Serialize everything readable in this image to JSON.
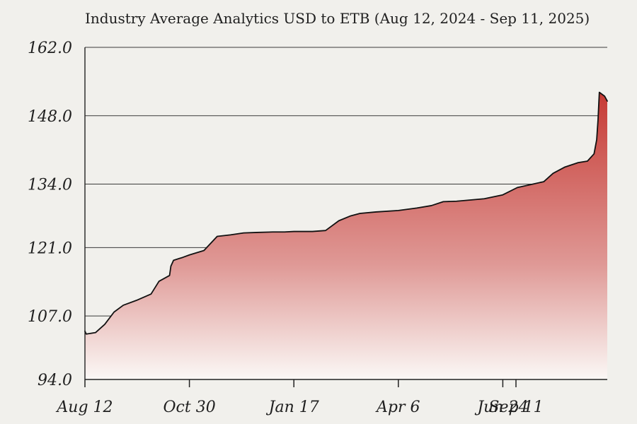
{
  "page": {
    "background": "#f1f0ec"
  },
  "chart_data": {
    "type": "area",
    "title": "Industry Average Analytics  USD to ETB (Aug 12, 2024 - Sep 11, 2025)",
    "xlabel": "",
    "ylabel": "",
    "grid": true,
    "legend": "none",
    "x_tick_labels": [
      "Aug 12",
      "Oct 30",
      "Jan 17",
      "Apr 6",
      "Jun 24",
      "Sep 11"
    ],
    "y_tick_labels": [
      "94.0",
      "107.0",
      "121.0",
      "134.0",
      "148.0",
      "162.0"
    ],
    "ylim": [
      94.0,
      162.0
    ],
    "colors": {
      "fill_top": "#c63a34",
      "fill_bottom": "#fbf8f6",
      "line": "#111111",
      "grid": "#3a3a3a"
    },
    "series": [
      {
        "x": [
          "2024-08-12",
          "2024-08-13",
          "2024-08-20",
          "2024-08-27",
          "2024-09-03",
          "2024-09-10",
          "2024-09-20",
          "2024-10-01",
          "2024-10-07",
          "2024-10-15",
          "2024-10-16",
          "2024-10-18",
          "2024-10-25",
          "2024-10-30",
          "2024-11-10",
          "2024-11-20",
          "2024-11-30",
          "2024-12-10",
          "2024-12-20",
          "2025-01-01",
          "2025-01-10",
          "2025-01-17",
          "2025-01-31",
          "2025-02-10",
          "2025-02-20",
          "2025-03-01",
          "2025-03-08",
          "2025-03-20",
          "2025-04-06",
          "2025-04-20",
          "2025-05-01",
          "2025-05-10",
          "2025-05-20",
          "2025-06-10",
          "2025-06-24",
          "2025-07-05",
          "2025-07-15",
          "2025-07-25",
          "2025-08-01",
          "2025-08-10",
          "2025-08-20",
          "2025-08-27",
          "2025-09-01",
          "2025-09-03",
          "2025-09-04",
          "2025-09-05",
          "2025-09-09",
          "2025-09-11"
        ],
        "values": [
          103.9,
          103.3,
          103.6,
          105.3,
          107.8,
          109.2,
          110.2,
          111.5,
          114.1,
          115.3,
          117.2,
          118.4,
          119.0,
          119.5,
          120.4,
          123.3,
          123.6,
          124.0,
          124.1,
          124.2,
          124.2,
          124.3,
          124.3,
          124.5,
          126.5,
          127.5,
          128.0,
          128.3,
          128.6,
          129.1,
          129.6,
          130.4,
          130.5,
          131.0,
          131.8,
          133.3,
          133.9,
          134.5,
          136.2,
          137.5,
          138.4,
          138.7,
          140.2,
          143.1,
          147.1,
          152.8,
          152.0,
          151.0
        ]
      }
    ]
  }
}
